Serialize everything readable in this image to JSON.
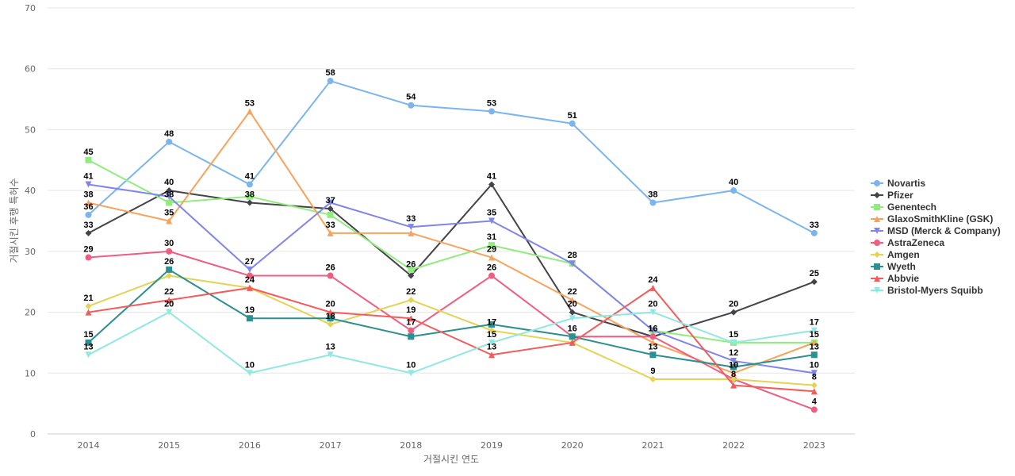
{
  "chart_data": {
    "type": "line",
    "xlabel": "거절시킨 연도",
    "ylabel": "거절시킨 후행 특허수",
    "x": [
      "2014",
      "2015",
      "2016",
      "2017",
      "2018",
      "2019",
      "2020",
      "2021",
      "2022",
      "2023"
    ],
    "ylim": [
      0,
      70
    ],
    "yticks": [
      0,
      10,
      20,
      30,
      40,
      50,
      60,
      70
    ],
    "grid": true,
    "legend_position": "right",
    "series": [
      {
        "name": "Novartis",
        "color": "#7cb5ec",
        "marker": "circle",
        "values": [
          36,
          48,
          41,
          58,
          54,
          53,
          51,
          38,
          40,
          33
        ]
      },
      {
        "name": "Pfizer",
        "color": "#434348",
        "marker": "diamond",
        "values": [
          33,
          40,
          38,
          37,
          26,
          41,
          20,
          16,
          20,
          25
        ]
      },
      {
        "name": "Genentech",
        "color": "#90ed7d",
        "marker": "square",
        "values": [
          45,
          38,
          39,
          36,
          27,
          31,
          28,
          17,
          15,
          15
        ]
      },
      {
        "name": "GlaxoSmithKline (GSK)",
        "color": "#f7a35c",
        "marker": "triangle",
        "values": [
          38,
          35,
          53,
          33,
          33,
          29,
          22,
          15,
          10,
          15
        ]
      },
      {
        "name": "MSD (Merck & Company)",
        "color": "#8085e9",
        "marker": "triangle-down",
        "values": [
          41,
          39,
          27,
          38,
          34,
          35,
          28,
          17,
          12,
          10
        ]
      },
      {
        "name": "AstraZeneca",
        "color": "#f15c80",
        "marker": "circle",
        "values": [
          29,
          30,
          26,
          26,
          17,
          26,
          16,
          16,
          9,
          4
        ]
      },
      {
        "name": "Amgen",
        "color": "#e4d354",
        "marker": "diamond",
        "values": [
          21,
          26,
          24,
          18,
          22,
          17,
          15,
          9,
          9,
          8
        ]
      },
      {
        "name": "Wyeth",
        "color": "#2b908f",
        "marker": "square",
        "values": [
          15,
          27,
          19,
          19,
          16,
          18,
          16,
          13,
          11,
          13
        ]
      },
      {
        "name": "Abbvie",
        "color": "#f45b5b",
        "marker": "triangle",
        "values": [
          20,
          22,
          24,
          20,
          19,
          13,
          15,
          24,
          8,
          7
        ]
      },
      {
        "name": "Bristol-Myers Squibb",
        "color": "#91e8e1",
        "marker": "triangle-down",
        "values": [
          13,
          20,
          10,
          13,
          10,
          15,
          19,
          20,
          15,
          17
        ]
      }
    ],
    "data_labels": [
      {
        "x": "2014",
        "text": "45",
        "value": 45
      },
      {
        "x": "2014",
        "text": "41",
        "value": 41
      },
      {
        "x": "2014",
        "text": "38",
        "value": 38
      },
      {
        "x": "2014",
        "text": "36",
        "value": 36
      },
      {
        "x": "2014",
        "text": "33",
        "value": 33
      },
      {
        "x": "2014",
        "text": "29",
        "value": 29
      },
      {
        "x": "2014",
        "text": "21",
        "value": 21
      },
      {
        "x": "2014",
        "text": "15",
        "value": 15
      },
      {
        "x": "2014",
        "text": "13",
        "value": 13
      },
      {
        "x": "2015",
        "text": "48",
        "value": 48
      },
      {
        "x": "2015",
        "text": "40",
        "value": 40
      },
      {
        "x": "2015",
        "text": "38",
        "value": 38
      },
      {
        "x": "2015",
        "text": "35",
        "value": 35
      },
      {
        "x": "2015",
        "text": "30",
        "value": 30
      },
      {
        "x": "2015",
        "text": "26",
        "value": 27
      },
      {
        "x": "2015",
        "text": "22",
        "value": 22
      },
      {
        "x": "2015",
        "text": "20",
        "value": 20
      },
      {
        "x": "2016",
        "text": "53",
        "value": 53
      },
      {
        "x": "2016",
        "text": "41",
        "value": 41
      },
      {
        "x": "2016",
        "text": "38",
        "value": 38
      },
      {
        "x": "2016",
        "text": "27",
        "value": 27
      },
      {
        "x": "2016",
        "text": "24",
        "value": 24
      },
      {
        "x": "2016",
        "text": "19",
        "value": 19
      },
      {
        "x": "2016",
        "text": "10",
        "value": 10
      },
      {
        "x": "2017",
        "text": "58",
        "value": 58
      },
      {
        "x": "2017",
        "text": "37",
        "value": 37
      },
      {
        "x": "2017",
        "text": "33",
        "value": 33
      },
      {
        "x": "2017",
        "text": "26",
        "value": 26
      },
      {
        "x": "2017",
        "text": "20",
        "value": 20
      },
      {
        "x": "2017",
        "text": "18",
        "value": 18
      },
      {
        "x": "2017",
        "text": "13",
        "value": 13
      },
      {
        "x": "2018",
        "text": "54",
        "value": 54
      },
      {
        "x": "2018",
        "text": "33",
        "value": 34
      },
      {
        "x": "2018",
        "text": "26",
        "value": 26.5
      },
      {
        "x": "2018",
        "text": "22",
        "value": 22
      },
      {
        "x": "2018",
        "text": "19",
        "value": 19
      },
      {
        "x": "2018",
        "text": "17",
        "value": 17
      },
      {
        "x": "2018",
        "text": "10",
        "value": 10
      },
      {
        "x": "2019",
        "text": "53",
        "value": 53
      },
      {
        "x": "2019",
        "text": "41",
        "value": 41
      },
      {
        "x": "2019",
        "text": "35",
        "value": 35
      },
      {
        "x": "2019",
        "text": "31",
        "value": 31
      },
      {
        "x": "2019",
        "text": "29",
        "value": 29
      },
      {
        "x": "2019",
        "text": "26",
        "value": 26
      },
      {
        "x": "2019",
        "text": "17",
        "value": 17
      },
      {
        "x": "2019",
        "text": "15",
        "value": 15
      },
      {
        "x": "2019",
        "text": "13",
        "value": 13
      },
      {
        "x": "2020",
        "text": "51",
        "value": 51
      },
      {
        "x": "2020",
        "text": "28",
        "value": 28
      },
      {
        "x": "2020",
        "text": "22",
        "value": 22
      },
      {
        "x": "2020",
        "text": "20",
        "value": 20
      },
      {
        "x": "2020",
        "text": "16",
        "value": 16
      },
      {
        "x": "2021",
        "text": "38",
        "value": 38
      },
      {
        "x": "2021",
        "text": "24",
        "value": 24
      },
      {
        "x": "2021",
        "text": "20",
        "value": 20
      },
      {
        "x": "2021",
        "text": "16",
        "value": 16
      },
      {
        "x": "2021",
        "text": "13",
        "value": 13
      },
      {
        "x": "2021",
        "text": "9",
        "value": 9
      },
      {
        "x": "2022",
        "text": "40",
        "value": 40
      },
      {
        "x": "2022",
        "text": "20",
        "value": 20
      },
      {
        "x": "2022",
        "text": "15",
        "value": 15
      },
      {
        "x": "2022",
        "text": "12",
        "value": 12
      },
      {
        "x": "2022",
        "text": "10",
        "value": 10
      },
      {
        "x": "2022",
        "text": "8",
        "value": 8.5
      },
      {
        "x": "2023",
        "text": "33",
        "value": 33
      },
      {
        "x": "2023",
        "text": "25",
        "value": 25
      },
      {
        "x": "2023",
        "text": "17",
        "value": 17
      },
      {
        "x": "2023",
        "text": "15",
        "value": 15
      },
      {
        "x": "2023",
        "text": "13",
        "value": 13
      },
      {
        "x": "2023",
        "text": "10",
        "value": 10
      },
      {
        "x": "2023",
        "text": "8",
        "value": 8
      },
      {
        "x": "2023",
        "text": "4",
        "value": 4
      }
    ]
  }
}
